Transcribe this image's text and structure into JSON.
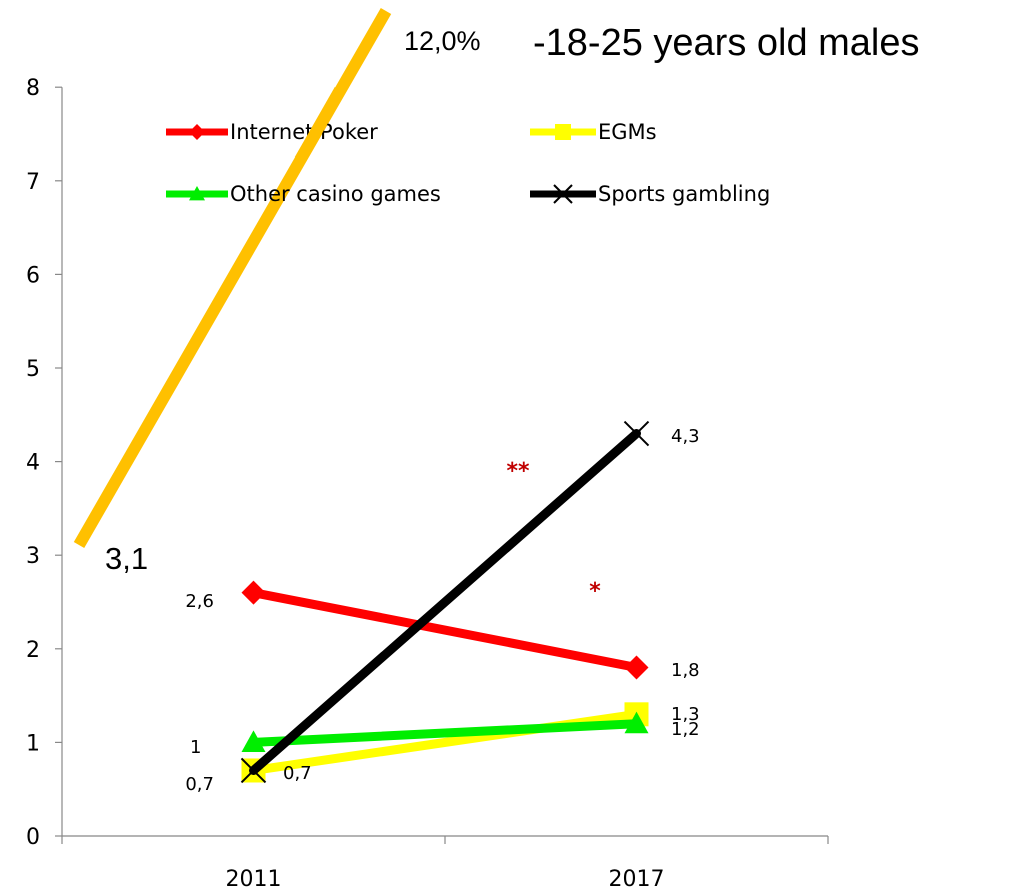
{
  "chart_data": {
    "type": "line",
    "title": "",
    "categories": [
      "2011",
      "2017"
    ],
    "ylim": [
      0,
      8
    ],
    "yticks": [
      "0",
      "1",
      "2",
      "3",
      "4",
      "5",
      "6",
      "7",
      "8"
    ],
    "grid": false,
    "legend_position": "top",
    "series": [
      {
        "name": "Internet Poker",
        "values": [
          2.6,
          1.8
        ],
        "labels": [
          "2,6",
          "1,8"
        ],
        "color": "#ff0000",
        "marker": "diamond"
      },
      {
        "name": "EGMs",
        "values": [
          0.7,
          1.3
        ],
        "labels": [
          "0,7",
          "1,3"
        ],
        "color": "#ffff00",
        "marker": "square"
      },
      {
        "name": "Other casino games",
        "values": [
          1.0,
          1.2
        ],
        "labels": [
          "1",
          "1,2"
        ],
        "color": "#00ee00",
        "marker": "triangle"
      },
      {
        "name": "Sports gambling",
        "values": [
          0.7,
          4.3
        ],
        "labels": [
          "0,7",
          "4,3"
        ],
        "color": "#000000",
        "marker": "x"
      }
    ],
    "overlay": {
      "label": "-18-25 years old males",
      "start_label": "3,1",
      "end_label": "12,0%",
      "color": "#ffc000"
    },
    "annotations": {
      "double": "**",
      "single": "*",
      "color": "#c00000"
    }
  }
}
